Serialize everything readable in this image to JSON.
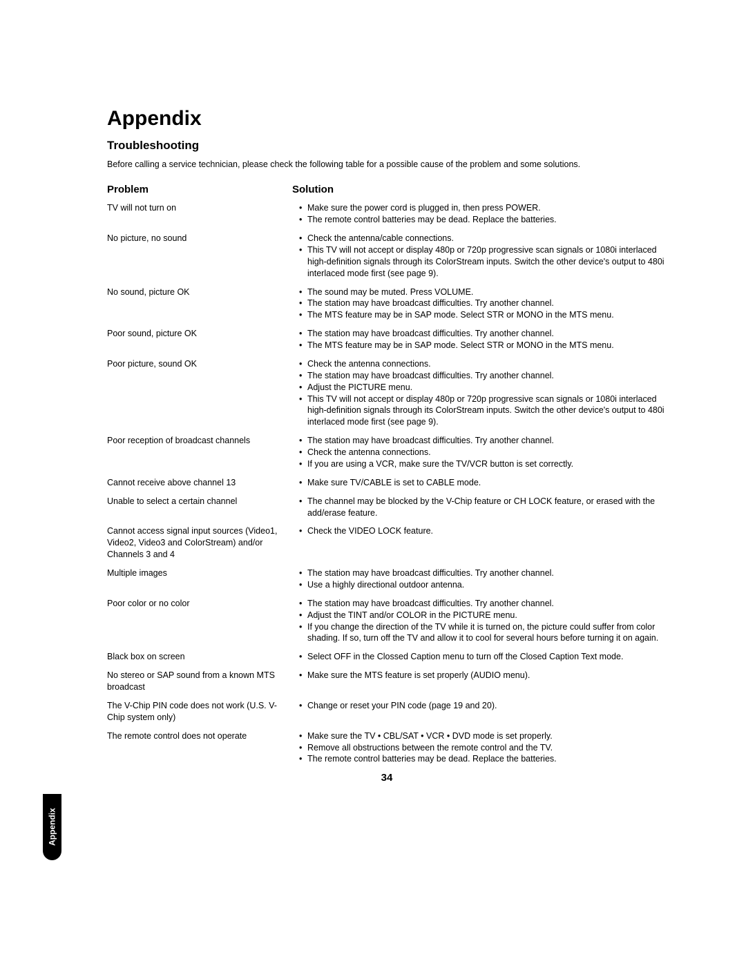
{
  "title": "Appendix",
  "section_title": "Troubleshooting",
  "intro": "Before calling a service technician, please check the following table for a possible cause of the problem and some solutions.",
  "problem_header": "Problem",
  "solution_header": "Solution",
  "page_number": "34",
  "side_tab": "Appendix",
  "rows": [
    {
      "problem": "TV will not turn on",
      "solutions": [
        "Make sure the power cord is plugged in, then press POWER.",
        "The remote control batteries may be dead. Replace the batteries."
      ]
    },
    {
      "problem": "No picture, no sound",
      "solutions": [
        "Check the antenna/cable connections.",
        "This TV will not accept or display 480p or 720p progressive scan signals or 1080i interlaced high-definition signals through its ColorStream inputs. Switch the other device's output to 480i interlaced mode first (see page 9)."
      ]
    },
    {
      "problem": "No sound, picture OK",
      "solutions": [
        "The sound may be muted. Press VOLUME.",
        "The station may have broadcast difficulties. Try another channel.",
        "The MTS feature may be in SAP mode. Select STR or MONO in the MTS menu."
      ]
    },
    {
      "problem": "Poor sound, picture OK",
      "solutions": [
        "The station may have broadcast difficulties. Try another channel.",
        "The MTS feature may be in SAP mode. Select STR or MONO in the MTS menu."
      ]
    },
    {
      "problem": "Poor picture, sound OK",
      "solutions": [
        "Check the antenna connections.",
        "The station may have broadcast difficulties. Try another channel.",
        "Adjust the PICTURE menu.",
        "This TV will not accept or display 480p or 720p progressive scan signals or 1080i interlaced high-definition signals through its ColorStream inputs. Switch the other device's output to 480i interlaced mode first (see page 9)."
      ]
    },
    {
      "problem": "Poor reception of broadcast channels",
      "solutions": [
        "The station may have broadcast difficulties. Try another channel.",
        "Check the antenna connections.",
        "If you are using a VCR, make sure the TV/VCR button is set correctly."
      ]
    },
    {
      "problem": "Cannot receive above channel 13",
      "solutions": [
        "Make sure TV/CABLE is set to CABLE mode."
      ]
    },
    {
      "problem": "Unable to select a certain channel",
      "solutions": [
        "The channel may be blocked by the V-Chip feature or CH LOCK feature, or erased with the add/erase feature."
      ]
    },
    {
      "problem": "Cannot access signal input sources (Video1, Video2, Video3 and ColorStream) and/or Channels 3 and 4",
      "solutions": [
        "Check the VIDEO LOCK feature."
      ]
    },
    {
      "problem": "Multiple images",
      "solutions": [
        "The station may have broadcast difficulties. Try another channel.",
        "Use a highly directional outdoor antenna."
      ]
    },
    {
      "problem": "Poor color or no color",
      "solutions": [
        "The station may have broadcast difficulties. Try another channel.",
        "Adjust the TINT and/or COLOR in the PICTURE menu.",
        "If you change the direction of the TV while it is turned on, the picture could suffer from color shading. If so, turn off the TV and allow it to cool for several hours before turning it on again."
      ]
    },
    {
      "problem": "Black box on screen",
      "solutions": [
        "Select OFF in the Clossed Caption menu to turn off the Closed Caption Text mode."
      ]
    },
    {
      "problem": "No stereo or SAP sound from a known MTS broadcast",
      "solutions": [
        "Make sure the MTS feature is set properly (AUDIO menu)."
      ]
    },
    {
      "problem": "The V-Chip PIN code does not work (U.S. V-Chip system only)",
      "solutions": [
        "Change or reset your PIN code (page 19 and 20)."
      ]
    },
    {
      "problem": "The remote control does not operate",
      "solutions": [
        "Make sure the TV • CBL/SAT • VCR • DVD mode is set properly.",
        "Remove all obstructions between the remote control and the TV.",
        "The remote control batteries may be dead. Replace the batteries."
      ]
    }
  ]
}
